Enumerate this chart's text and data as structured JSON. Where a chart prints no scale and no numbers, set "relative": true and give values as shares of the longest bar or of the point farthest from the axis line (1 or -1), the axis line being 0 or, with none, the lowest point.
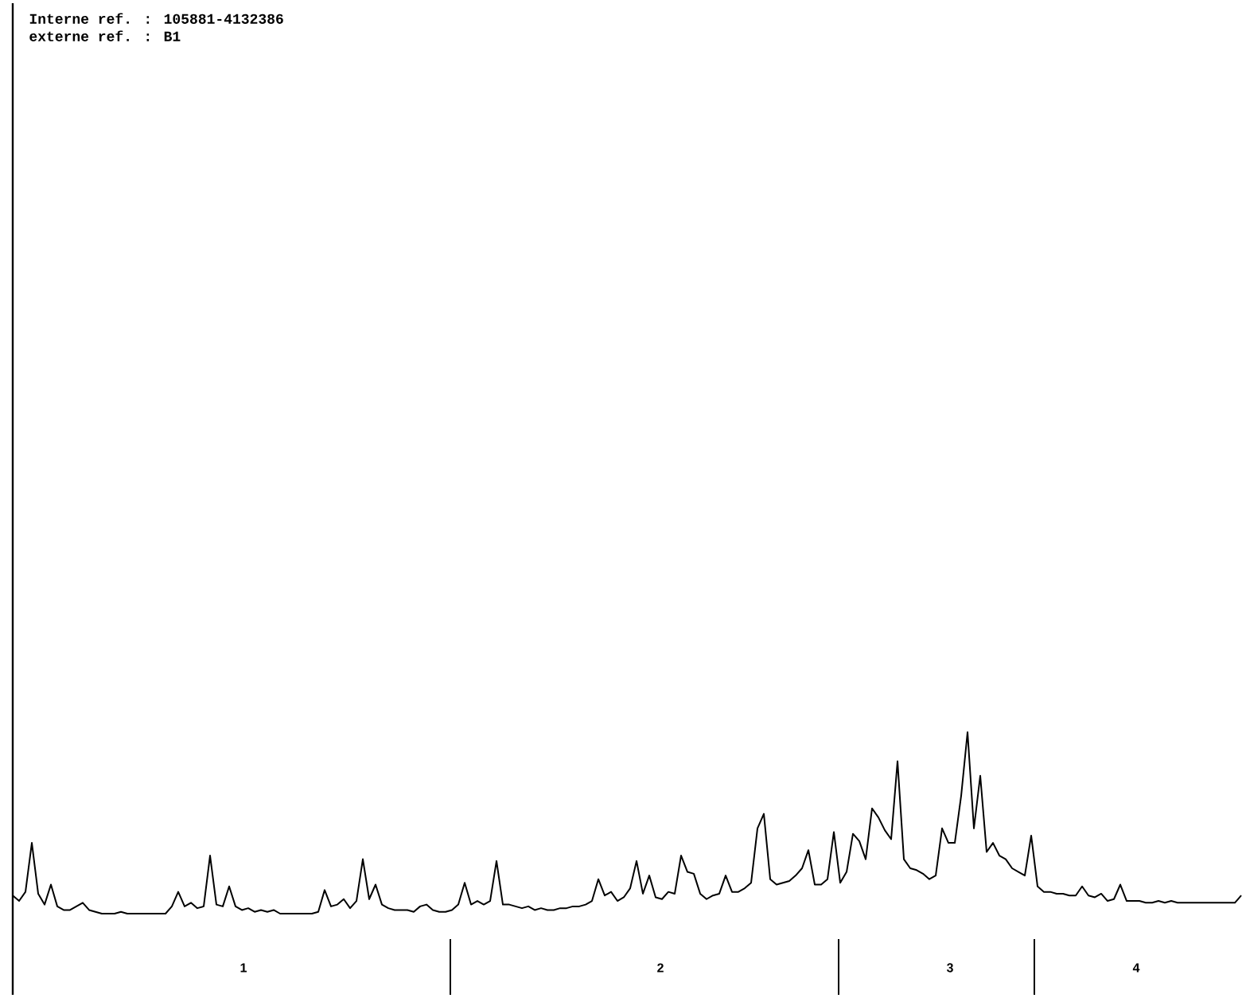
{
  "chart_data": {
    "type": "line",
    "relative": true,
    "color": "#000000",
    "annotations": [
      "Interne ref. : 105881-4132386",
      "externe ref. : B1",
      "1",
      "2",
      "3",
      "4"
    ],
    "categories": [
      null,
      null,
      null,
      null,
      null,
      null,
      null,
      null,
      null,
      null,
      null,
      null,
      null,
      null,
      null,
      null,
      null,
      null,
      null,
      null,
      null,
      null,
      null,
      null,
      null,
      null,
      null,
      null,
      null,
      null,
      null,
      null,
      null,
      null,
      null,
      null,
      null,
      null,
      null,
      null,
      null,
      null,
      null,
      null,
      null,
      null,
      null,
      null,
      null,
      null,
      null,
      null,
      null,
      null,
      null,
      null,
      null,
      null,
      null,
      null,
      null,
      null,
      null,
      null,
      null,
      null,
      null,
      null,
      null,
      null,
      null,
      null,
      null,
      null,
      null,
      null,
      null,
      null,
      null,
      null,
      null,
      null,
      null,
      null,
      null,
      null,
      null,
      null,
      null,
      null,
      null,
      null,
      null,
      null,
      null,
      null,
      null,
      null,
      null,
      null,
      null,
      null,
      null,
      null,
      null,
      null,
      null,
      null,
      null,
      null,
      null,
      null,
      null,
      null,
      null,
      null,
      null,
      null,
      null,
      null,
      null,
      null,
      null,
      null,
      null,
      null,
      null,
      null,
      null,
      null,
      null,
      null,
      null,
      null,
      null,
      null,
      null,
      null,
      null,
      null,
      null,
      null,
      null,
      null,
      null,
      null,
      null,
      null,
      null,
      null,
      null,
      null,
      null,
      null,
      null,
      null,
      null,
      null,
      null,
      null,
      null,
      null,
      null,
      null,
      null,
      null,
      null,
      null,
      null,
      null,
      null,
      null,
      null,
      null,
      null,
      null,
      null,
      null,
      null,
      null,
      null,
      null,
      null,
      null,
      null,
      null,
      null,
      null,
      null,
      null,
      null,
      null,
      null,
      null
    ],
    "values": [
      0.1,
      0.07,
      0.12,
      0.39,
      0.11,
      0.05,
      0.16,
      0.04,
      0.02,
      0.02,
      0.04,
      0.06,
      0.02,
      0.01,
      0,
      0,
      0,
      0.01,
      0,
      0,
      0,
      0,
      0,
      0,
      0,
      0.04,
      0.12,
      0.04,
      0.06,
      0.03,
      0.04,
      0.32,
      0.05,
      0.04,
      0.15,
      0.04,
      0.02,
      0.03,
      0.01,
      0.02,
      0.01,
      0.02,
      0,
      0,
      0,
      0,
      0,
      0,
      0.01,
      0.13,
      0.04,
      0.05,
      0.08,
      0.03,
      0.07,
      0.3,
      0.08,
      0.16,
      0.05,
      0.03,
      0.02,
      0.02,
      0.02,
      0.01,
      0.04,
      0.05,
      0.02,
      0.01,
      0.01,
      0.02,
      0.05,
      0.17,
      0.05,
      0.07,
      0.05,
      0.07,
      0.29,
      0.05,
      0.05,
      0.04,
      0.03,
      0.04,
      0.02,
      0.03,
      0.02,
      0.02,
      0.03,
      0.03,
      0.04,
      0.04,
      0.05,
      0.07,
      0.19,
      0.1,
      0.12,
      0.07,
      0.09,
      0.14,
      0.29,
      0.11,
      0.21,
      0.09,
      0.08,
      0.12,
      0.11,
      0.32,
      0.23,
      0.22,
      0.11,
      0.08,
      0.1,
      0.11,
      0.21,
      0.12,
      0.12,
      0.14,
      0.17,
      0.47,
      0.55,
      0.19,
      0.16,
      0.17,
      0.18,
      0.21,
      0.25,
      0.35,
      0.16,
      0.16,
      0.19,
      0.45,
      0.17,
      0.23,
      0.44,
      0.4,
      0.3,
      0.58,
      0.53,
      0.46,
      0.41,
      0.84,
      0.3,
      0.25,
      0.24,
      0.22,
      0.19,
      0.21,
      0.47,
      0.39,
      0.39,
      0.65,
      1,
      0.47,
      0.76,
      0.34,
      0.39,
      0.32,
      0.3,
      0.25,
      0.23,
      0.21,
      0.43,
      0.15,
      0.12,
      0.12,
      0.11,
      0.11,
      0.1,
      0.1,
      0.15,
      0.1,
      0.09,
      0.11,
      0.07,
      0.08,
      0.16,
      0.07,
      0.07,
      0.07,
      0.06,
      0.06,
      0.07,
      0.06,
      0.07,
      0.06,
      0.06,
      0.06,
      0.06,
      0.06,
      0.06,
      0.06,
      0.06,
      0.06,
      0.06,
      0.1
    ]
  }
}
